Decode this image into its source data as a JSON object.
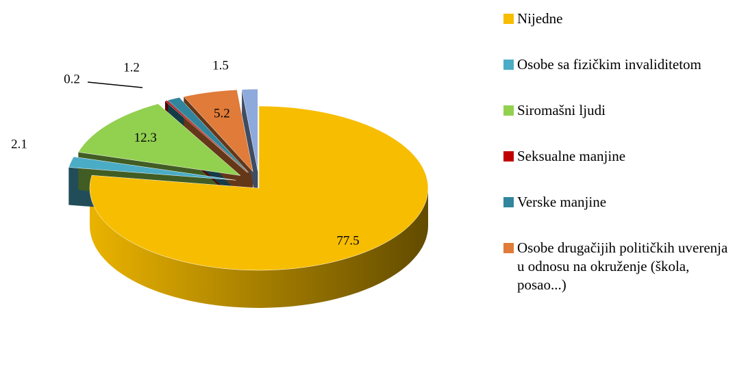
{
  "chart_data": {
    "type": "pie3d",
    "categories": [
      "Nijedne",
      "Osobe sa fizičkim invaliditetom",
      "Siromašni ljudi",
      "Seksualne manjine",
      "Verske manjine",
      "Osobe drugačijih političkih uverenja u odnosu na okruženje (škola, posao...)",
      null
    ],
    "values": [
      77.5,
      2.1,
      12.3,
      0.2,
      1.2,
      5.2,
      1.5
    ],
    "colors": [
      "#f7bd00",
      "#4bacc6",
      "#92d050",
      "#c00000",
      "#31859c",
      "#e07b39",
      "#8ea9db"
    ],
    "legend": "right"
  }
}
